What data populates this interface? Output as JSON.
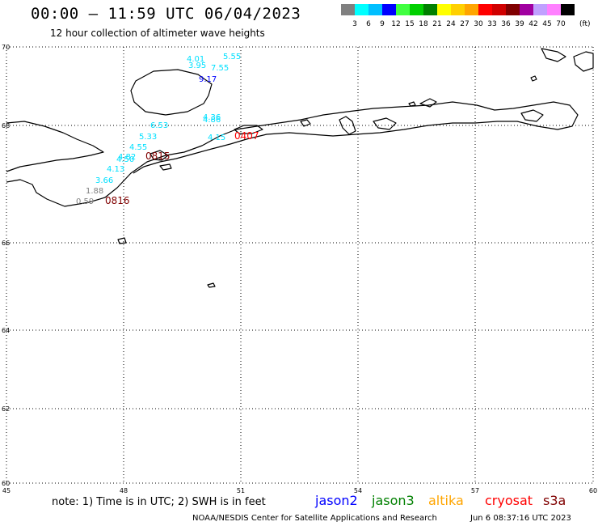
{
  "header": {
    "title": "00:00 — 11:59 UTC 06/04/2023",
    "subtitle": "12 hour collection of altimeter wave heights"
  },
  "colorbar": {
    "colors": [
      "#808080",
      "#00ffff",
      "#00bfff",
      "#0000ff",
      "#40ff40",
      "#00d000",
      "#008000",
      "#ffff00",
      "#ffd000",
      "#ffa500",
      "#ff0000",
      "#d00000",
      "#800000",
      "#a000a0",
      "#c0a0ff",
      "#ff80ff",
      "#000000"
    ],
    "labels": [
      "3",
      "6",
      "9",
      "12",
      "15",
      "18",
      "21",
      "24",
      "27",
      "30",
      "33",
      "36",
      "39",
      "42",
      "45",
      "70"
    ],
    "unit": "(ft)"
  },
  "axes": {
    "x_ticks": [
      "45",
      "48",
      "51",
      "54",
      "57",
      "60"
    ],
    "y_ticks": [
      "70",
      "68",
      "66",
      "64",
      "62",
      "60"
    ]
  },
  "observations": [
    {
      "text": "4.01",
      "color": "#00e0ff"
    },
    {
      "text": "3.95",
      "color": "#00e0ff"
    },
    {
      "text": "5.55",
      "color": "#00e0ff"
    },
    {
      "text": "7.55",
      "color": "#00e0ff"
    },
    {
      "text": "9.17",
      "color": "#0000ff"
    },
    {
      "text": "4.36",
      "color": "#00e0ff"
    },
    {
      "text": "4.86",
      "color": "#00e0ff"
    },
    {
      "text": "6.53",
      "color": "#00e0ff"
    },
    {
      "text": "5.33",
      "color": "#00e0ff"
    },
    {
      "text": "4.15",
      "color": "#00e0ff"
    },
    {
      "text": "4.55",
      "color": "#00e0ff"
    },
    {
      "text": "4.82",
      "color": "#00e0ff"
    },
    {
      "text": "4.50",
      "color": "#00e0ff"
    },
    {
      "text": "4.13",
      "color": "#00e0ff"
    },
    {
      "text": "3.66",
      "color": "#00e0ff"
    },
    {
      "text": "1.88",
      "color": "#808080"
    },
    {
      "text": "0.59",
      "color": "#808080"
    },
    {
      "text": "0816",
      "color": "#800000"
    },
    {
      "text": "0815",
      "color": "#800000"
    },
    {
      "text": "0407",
      "color": "#ff0000"
    }
  ],
  "footer": {
    "note": "note:  1) Time is in UTC;  2) SWH is in feet",
    "satellites": [
      {
        "name": "jason2",
        "color": "#0000ff"
      },
      {
        "name": "jason3",
        "color": "#008000"
      },
      {
        "name": "altika",
        "color": "#ffa500"
      },
      {
        "name": "cryosat",
        "color": "#ff0000"
      },
      {
        "name": "s3a",
        "color": "#800000"
      }
    ],
    "credit": "NOAA/NESDIS Center for Satellite Applications and Research",
    "timestamp": "Jun  6 08:37:16 UTC 2023"
  }
}
